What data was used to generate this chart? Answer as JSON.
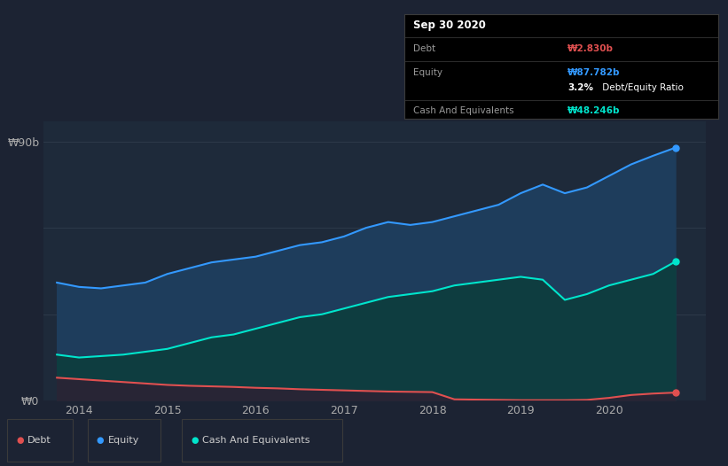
{
  "bg_color": "#1c2333",
  "plot_bg_color": "#1e2a3a",
  "grid_color": "#2d3a4a",
  "years": [
    2013.75,
    2014.0,
    2014.25,
    2014.5,
    2014.75,
    2015.0,
    2015.25,
    2015.5,
    2015.75,
    2016.0,
    2016.25,
    2016.5,
    2016.75,
    2017.0,
    2017.25,
    2017.5,
    2017.75,
    2018.0,
    2018.25,
    2018.5,
    2018.75,
    2019.0,
    2019.25,
    2019.5,
    2019.75,
    2020.0,
    2020.25,
    2020.5,
    2020.75
  ],
  "equity": [
    41,
    39.5,
    39,
    40,
    41,
    44,
    46,
    48,
    49,
    50,
    52,
    54,
    55,
    57,
    60,
    62,
    61,
    62,
    64,
    66,
    68,
    72,
    75,
    72,
    74,
    78,
    82,
    85,
    87.782
  ],
  "cash": [
    16,
    15,
    15.5,
    16,
    17,
    18,
    20,
    22,
    23,
    25,
    27,
    29,
    30,
    32,
    34,
    36,
    37,
    38,
    40,
    41,
    42,
    43,
    42,
    35,
    37,
    40,
    42,
    44,
    48.246
  ],
  "debt": [
    8,
    7.5,
    7,
    6.5,
    6,
    5.5,
    5.2,
    5.0,
    4.8,
    4.5,
    4.3,
    4.0,
    3.8,
    3.6,
    3.4,
    3.2,
    3.1,
    3.0,
    0.5,
    0.4,
    0.3,
    0.2,
    0.2,
    0.2,
    0.3,
    1.0,
    2.0,
    2.5,
    2.83
  ],
  "equity_line_color": "#3399ff",
  "cash_line_color": "#00e5cc",
  "debt_line_color": "#e05050",
  "equity_fill_color": "#1e3d5c",
  "cash_fill_color": "#0e3d40",
  "debt_fill_color": "#282535",
  "ylim": [
    0,
    97
  ],
  "xlim": [
    2013.6,
    2021.1
  ],
  "ytick_labels": [
    "₩0",
    "₩90b"
  ],
  "ytick_values": [
    0,
    90
  ],
  "xtick_labels": [
    "2014",
    "2015",
    "2016",
    "2017",
    "2018",
    "2019",
    "2020"
  ],
  "xtick_values": [
    2014,
    2015,
    2016,
    2017,
    2018,
    2019,
    2020
  ],
  "tooltip_title": "Sep 30 2020",
  "tooltip_debt_label": "Debt",
  "tooltip_debt_value": "₩2.830b",
  "tooltip_equity_label": "Equity",
  "tooltip_equity_value": "₩87.782b",
  "tooltip_ratio_bold": "3.2%",
  "tooltip_ratio_rest": " Debt/Equity Ratio",
  "tooltip_cash_label": "Cash And Equivalents",
  "tooltip_cash_value": "₩48.246b",
  "legend_labels": [
    "Debt",
    "Equity",
    "Cash And Equivalents"
  ],
  "legend_colors": [
    "#e05050",
    "#3399ff",
    "#00e5cc"
  ]
}
